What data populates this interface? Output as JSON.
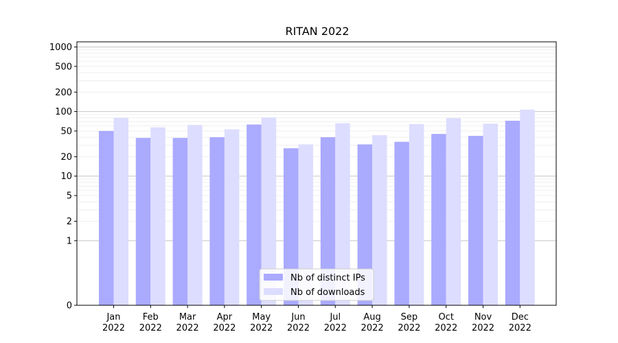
{
  "chart_data": {
    "type": "bar",
    "title": "RITAN 2022",
    "xlabel": "",
    "ylabel": "",
    "yscale": "symlog",
    "ylim": [
      0,
      1200
    ],
    "yticks": [
      0,
      1,
      2,
      5,
      10,
      20,
      50,
      100,
      200,
      500,
      1000
    ],
    "ytick_labels": [
      "0",
      "1",
      "2",
      "5",
      "10",
      "20",
      "50",
      "100",
      "200",
      "500",
      "1000"
    ],
    "grid": true,
    "legend_position": "bottom-center",
    "categories": [
      "Jan\n2022",
      "Feb\n2022",
      "Mar\n2022",
      "Apr\n2022",
      "May\n2022",
      "Jun\n2022",
      "Jul\n2022",
      "Aug\n2022",
      "Sep\n2022",
      "Oct\n2022",
      "Nov\n2022",
      "Dec\n2022"
    ],
    "series": [
      {
        "name": "Nb of distinct IPs",
        "color": "#aaaaff",
        "values": [
          50,
          39,
          39,
          40,
          63,
          27,
          40,
          31,
          34,
          45,
          42,
          72
        ]
      },
      {
        "name": "Nb of downloads",
        "color": "#ddddff",
        "values": [
          80,
          57,
          62,
          53,
          81,
          31,
          66,
          43,
          64,
          79,
          65,
          107
        ]
      }
    ]
  }
}
